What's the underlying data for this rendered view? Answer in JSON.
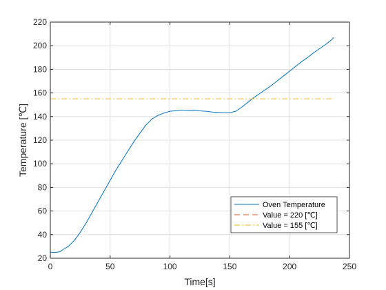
{
  "chart_data": {
    "type": "line",
    "title": "",
    "xlabel": "Time[s]",
    "ylabel": "Temperature [℃]",
    "xlim": [
      0,
      250
    ],
    "ylim": [
      20,
      220
    ],
    "xticks": [
      0,
      50,
      100,
      150,
      200,
      250
    ],
    "yticks": [
      20,
      40,
      60,
      80,
      100,
      120,
      140,
      160,
      180,
      200,
      220
    ],
    "grid": true,
    "legend_position": "bottom-right",
    "series": [
      {
        "name": "Oven Temperature",
        "style": "solid",
        "color": "#0072BD",
        "x": [
          0,
          5,
          8,
          10,
          15,
          20,
          25,
          30,
          35,
          40,
          45,
          50,
          55,
          60,
          65,
          70,
          75,
          80,
          85,
          90,
          95,
          100,
          105,
          110,
          115,
          120,
          125,
          130,
          135,
          140,
          145,
          150,
          155,
          160,
          165,
          170,
          175,
          180,
          185,
          190,
          195,
          200,
          205,
          210,
          215,
          220,
          225,
          230,
          235,
          237
        ],
        "y": [
          25,
          25,
          25.5,
          27,
          30,
          35,
          42,
          50,
          59,
          68,
          77,
          86,
          95,
          103,
          111,
          119,
          126,
          133,
          138,
          141,
          143,
          144.5,
          145,
          145.5,
          145.2,
          145.3,
          144.8,
          144.5,
          143.8,
          143.5,
          143.3,
          143.3,
          144.5,
          148,
          152,
          156,
          159.5,
          163,
          166.5,
          170.5,
          174.5,
          178.5,
          182.5,
          186.5,
          190,
          194,
          197.5,
          201,
          205,
          207
        ]
      },
      {
        "name": "Value = 220 [℃]",
        "style": "dashed",
        "color": "#D95319",
        "x": [
          0,
          237
        ],
        "y": [
          220,
          220
        ]
      },
      {
        "name": "Value = 155 [℃]",
        "style": "dashdot",
        "color": "#EDB120",
        "x": [
          0,
          237
        ],
        "y": [
          155,
          155
        ]
      }
    ]
  }
}
